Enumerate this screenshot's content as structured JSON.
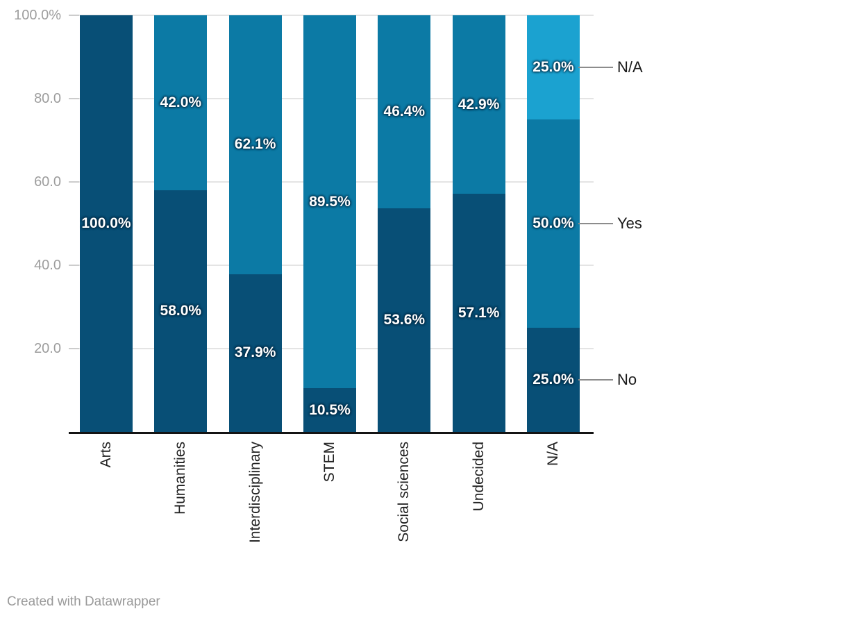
{
  "chart_data": {
    "type": "bar",
    "variant": "stacked-column-percent",
    "title": "",
    "categories": [
      "Arts",
      "Humanities",
      "Interdisciplinary",
      "STEM",
      "Social sciences",
      "Undecided",
      "N/A"
    ],
    "series": [
      {
        "name": "No",
        "color": "#084f76",
        "values": [
          100.0,
          58.0,
          37.9,
          10.5,
          53.6,
          57.1,
          25.0
        ],
        "labels": [
          "100.0%",
          "58.0%",
          "37.9%",
          "10.5%",
          "53.6%",
          "57.1%",
          "25.0%"
        ]
      },
      {
        "name": "Yes",
        "color": "#0c7aa5",
        "values": [
          0,
          42.0,
          62.1,
          89.5,
          46.4,
          42.9,
          50.0
        ],
        "labels": [
          "",
          "42.0%",
          "62.1%",
          "89.5%",
          "46.4%",
          "42.9%",
          "50.0%"
        ]
      },
      {
        "name": "N/A",
        "color": "#1ba2d0",
        "values": [
          0,
          0,
          0,
          0,
          0,
          0,
          25.0
        ],
        "labels": [
          "",
          "",
          "",
          "",
          "",
          "",
          "25.0%"
        ]
      }
    ],
    "y_axis": {
      "ylim": [
        0,
        100
      ],
      "grid": true,
      "ticks": [
        {
          "value": 100,
          "label": "100.0%"
        },
        {
          "value": 80,
          "label": "80.0"
        },
        {
          "value": 60,
          "label": "60.0"
        },
        {
          "value": 40,
          "label": "40.0"
        },
        {
          "value": 20,
          "label": "20.0"
        }
      ]
    },
    "legend": {
      "position": "right-callouts",
      "entries": [
        {
          "label": "N/A",
          "series": "N/A"
        },
        {
          "label": "Yes",
          "series": "Yes"
        },
        {
          "label": "No",
          "series": "No"
        }
      ]
    }
  },
  "style": {
    "axis_color": "#141414",
    "grid_color": "#e4e4e4",
    "tick_label_color": "#9d9d9d",
    "category_label_color": "#222222",
    "legend_text_color": "#1a1a1a",
    "value_label_color": "#ffffff"
  },
  "footer": {
    "credit": "Created with Datawrapper"
  }
}
